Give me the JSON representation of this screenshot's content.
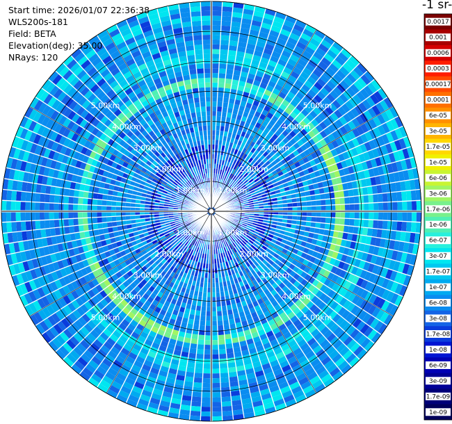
{
  "info": {
    "start_time": "Start time: 2026/01/07 22:36:38",
    "instrument": "WLS200s-181",
    "field": "Field: BETA",
    "elevation": "Elevation(deg): 35.00",
    "nrays": "NRays: 120"
  },
  "colorbar": {
    "title": "-1 sr-",
    "levels": [
      {
        "label": "0.0017",
        "color": "#7a0000"
      },
      {
        "label": "0.001",
        "color": "#a80000"
      },
      {
        "label": "0.0006",
        "color": "#d40000"
      },
      {
        "label": "0.0003",
        "color": "#ff1e00"
      },
      {
        "label": "0.00017",
        "color": "#ff4a00"
      },
      {
        "label": "0.0001",
        "color": "#ff7000"
      },
      {
        "label": "6e-05",
        "color": "#ff9000"
      },
      {
        "label": "3e-05",
        "color": "#ffb400"
      },
      {
        "label": "1.7e-05",
        "color": "#ffd800"
      },
      {
        "label": "1e-05",
        "color": "#f0f000"
      },
      {
        "label": "6e-06",
        "color": "#c8f532"
      },
      {
        "label": "3e-06",
        "color": "#a0f564"
      },
      {
        "label": "1.7e-06",
        "color": "#78f08c"
      },
      {
        "label": "1e-06",
        "color": "#50f0b4"
      },
      {
        "label": "6e-07",
        "color": "#28f0dc"
      },
      {
        "label": "3e-07",
        "color": "#00e6f0"
      },
      {
        "label": "1.7e-07",
        "color": "#00c8f0"
      },
      {
        "label": "1e-07",
        "color": "#00aaf0"
      },
      {
        "label": "6e-08",
        "color": "#0a8cf0"
      },
      {
        "label": "3e-08",
        "color": "#1464e6"
      },
      {
        "label": "1.7e-08",
        "color": "#0a3cdc"
      },
      {
        "label": "1e-08",
        "color": "#0014d2"
      },
      {
        "label": "6e-09",
        "color": "#0000b4"
      },
      {
        "label": "3e-09",
        "color": "#000096"
      },
      {
        "label": "1.7e-09",
        "color": "#000078"
      },
      {
        "label": "1e-09",
        "color": "#00005a"
      }
    ]
  },
  "range_rings": [
    {
      "label": "1.00km",
      "km": 1
    },
    {
      "label": "2.00km",
      "km": 2
    },
    {
      "label": "3.00km",
      "km": 3
    },
    {
      "label": "4.00km",
      "km": 4
    },
    {
      "label": "5.00km",
      "km": 5
    }
  ],
  "max_range_km": 7,
  "chart_data": {
    "type": "heatmap",
    "projection": "polar-ppi",
    "field": "BETA",
    "elevation_deg": 35.0,
    "n_rays": 120,
    "range_rings_km": [
      1,
      2,
      3,
      4,
      5
    ],
    "max_range_km": 7,
    "background_level": "3e-08",
    "features": [
      {
        "description": "enhanced backscatter ring",
        "range_km": 4.3,
        "level": "3e-06"
      },
      {
        "description": "enhanced backscatter ring (east/south segment)",
        "range_km": 5.2,
        "level": "6e-07"
      }
    ],
    "colorbar_levels": [
      "0.0017",
      "0.001",
      "0.0006",
      "0.0003",
      "0.00017",
      "0.0001",
      "6e-05",
      "3e-05",
      "1.7e-05",
      "1e-05",
      "6e-06",
      "3e-06",
      "1.7e-06",
      "1e-06",
      "6e-07",
      "3e-07",
      "1.7e-07",
      "1e-07",
      "6e-08",
      "3e-08",
      "1.7e-08",
      "1e-08",
      "6e-09",
      "3e-09",
      "1.7e-09",
      "1e-09"
    ]
  }
}
